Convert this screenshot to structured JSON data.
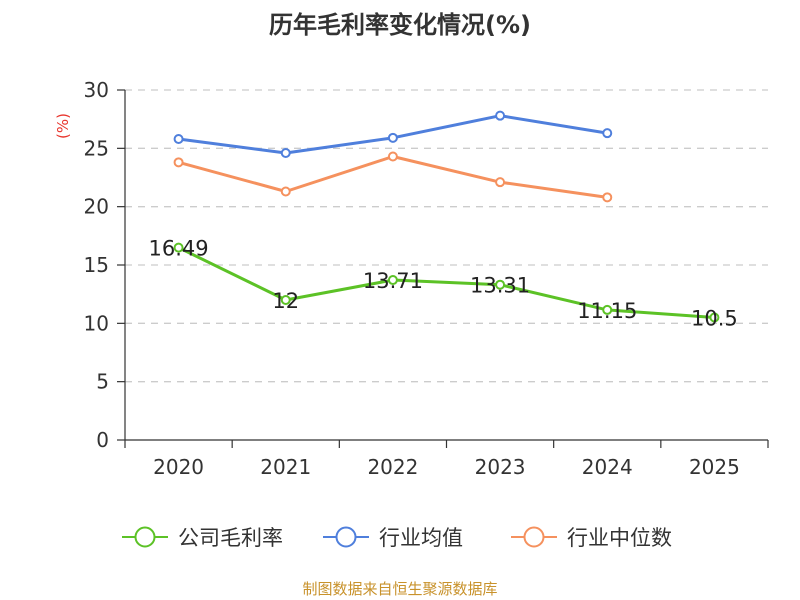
{
  "chart_data": {
    "type": "line",
    "title": "历年毛利率变化情况(%)",
    "ylabel": "(%)",
    "xlabel": "",
    "categories": [
      "2020",
      "2021",
      "2022",
      "2023",
      "2024",
      "2025"
    ],
    "ylim": [
      0,
      30
    ],
    "yticks": [
      0,
      5,
      10,
      15,
      20,
      25,
      30
    ],
    "grid": true,
    "legend_position": "bottom",
    "series": [
      {
        "name": "公司毛利率",
        "color": "#5cc226",
        "values": [
          16.49,
          12,
          13.71,
          13.31,
          11.15,
          10.5
        ],
        "labels": [
          "16.49",
          "12",
          "13.71",
          "13.31",
          "11.15",
          "10.5"
        ]
      },
      {
        "name": "行业均值",
        "color": "#4f7fdc",
        "values": [
          25.8,
          24.6,
          25.9,
          27.8,
          26.3,
          null
        ]
      },
      {
        "name": "行业中位数",
        "color": "#f5915e",
        "values": [
          23.8,
          21.3,
          24.3,
          22.1,
          20.8,
          null
        ]
      }
    ],
    "source": "制图数据来自恒生聚源数据库"
  }
}
